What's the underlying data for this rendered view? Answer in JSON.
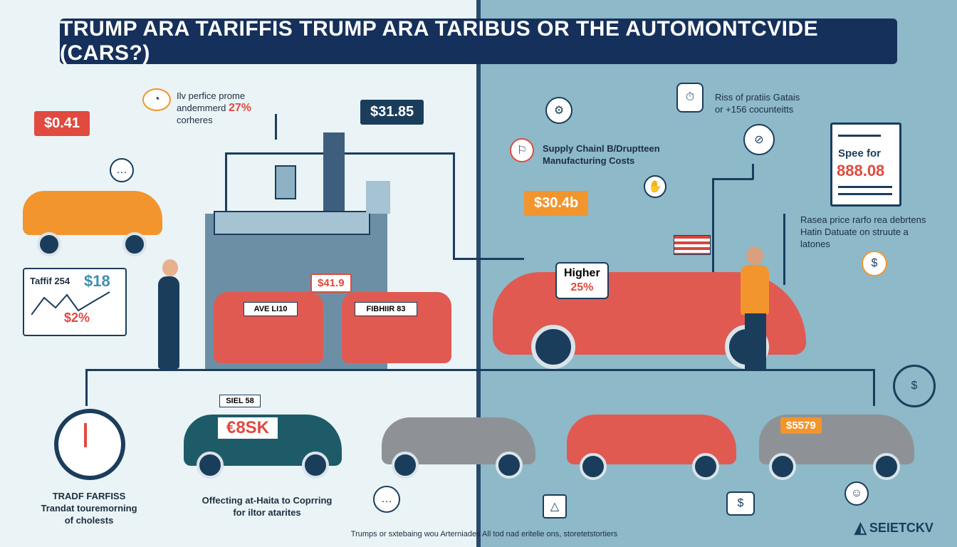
{
  "title": "TRUMP ARA TARIFFIS TRUMP ARA TARIBUS OR THE AUTOMONTCVIDE (CARS?)",
  "left": {
    "tag_top_left": "$0.41",
    "note_top": {
      "line1": "Ilv perfice prome",
      "line2": "andemmerd",
      "percent": "27%",
      "line3": "corheres"
    },
    "tag_factory": "$31.85",
    "chart_box": {
      "label": "Taffif 254",
      "value_top": "$18",
      "value_bottom": "$2%"
    },
    "car_plate_1": "AVE LI10",
    "car_plate_2": "FIBHIIR 83",
    "tag_41": "$41.9",
    "bottom_car_sign": "SIEL 58",
    "bottom_car_text": "€8SK",
    "timer_text": {
      "line1": "TRADF FARFISS",
      "line2": "Trandat touremorning",
      "line3": "of cholests"
    },
    "offecting_text": {
      "line1": "Offecting at-Haita to Coprring",
      "line2": "for iltor atarites"
    }
  },
  "right": {
    "supply_text": {
      "line1": "Supply Chainl B/Druptteen",
      "line2": "Manufacturing Costs"
    },
    "riss_text": {
      "line1": "Riss of pratiis Gatais",
      "line2": "or +156 cocunteitts"
    },
    "doc": {
      "label": "Spee for",
      "value": "888.08"
    },
    "tag_304": "$30.4b",
    "higher_bubble": {
      "line1": "Higher",
      "line2": "25%"
    },
    "rasea_text": {
      "line1": "Rasea price rarfo rea debrtens",
      "line2": "Hatin Datuate on struute a",
      "line3": "latones"
    },
    "tag_5579": "$5579"
  },
  "footer": "Trumps or sxtebaing wou Arterniades All tod nad eritelie ons, storetetstortiers",
  "brand": "SEIETCKV",
  "colors": {
    "navy": "#15305a",
    "red": "#e04a3f",
    "orange": "#f2952d",
    "teal_bg": "#8db9c9"
  }
}
